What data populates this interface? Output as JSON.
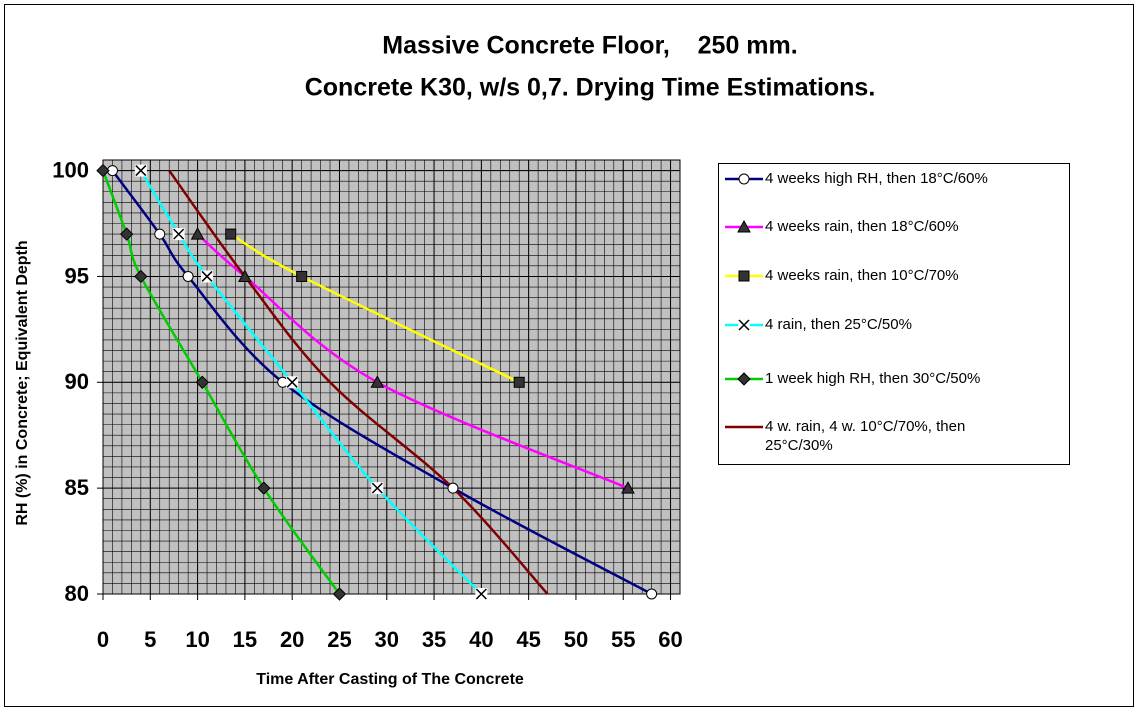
{
  "chart_data": {
    "type": "line",
    "title": [
      "Massive Concrete Floor,    250 mm.",
      "Concrete K30, w/s 0,7. Drying Time Estimations."
    ],
    "xlabel": "Time After Casting of The Concrete",
    "ylabel": "RH (%) in Concrete; Equivalent Depth",
    "xlim": [
      0,
      61
    ],
    "xticks": [
      0,
      5,
      10,
      15,
      20,
      25,
      30,
      35,
      40,
      45,
      50,
      55,
      60
    ],
    "ylim": [
      80,
      100.5
    ],
    "yticks": [
      80,
      85,
      90,
      95,
      100
    ],
    "grid": true,
    "minor_grid": {
      "x": 1,
      "y": 0.5
    },
    "plot_background": "#c0c0c0",
    "legend": "right",
    "series": [
      {
        "name": "4 weeks high RH, then 18°C/60%",
        "color": "#000080",
        "marker": "circle",
        "marker_color": "#ffffff",
        "x": [
          1,
          6,
          9,
          19,
          37,
          58
        ],
        "values": [
          100,
          97,
          95,
          90,
          85,
          80
        ]
      },
      {
        "name": "4 weeks rain, then 18°C/60%",
        "color": "#ff00ff",
        "marker": "triangle",
        "marker_color": "#333333",
        "x": [
          10,
          15,
          29,
          55.5
        ],
        "values": [
          97,
          95,
          90,
          85
        ]
      },
      {
        "name": "4 weeks rain, then 10°C/70%",
        "color": "#ffff00",
        "marker": "square",
        "marker_color": "#333333",
        "x": [
          13.5,
          21,
          44
        ],
        "values": [
          97,
          95,
          90
        ]
      },
      {
        "name": "4 rain, then 25°C/50%",
        "color": "#00ffff",
        "marker": "x",
        "marker_color": "#ffffff",
        "x": [
          4,
          8,
          11,
          20,
          29,
          40
        ],
        "values": [
          100,
          97,
          95,
          90,
          85,
          80
        ]
      },
      {
        "name": "1 week high RH, then 30°C/50%",
        "color": "#00cc00",
        "marker": "diamond",
        "marker_color": "#333333",
        "x": [
          0,
          2.5,
          4,
          10.5,
          17,
          25
        ],
        "values": [
          100,
          97,
          95,
          90,
          85,
          80
        ]
      },
      {
        "name": "4 w. rain, 4 w. 10°C/70%, then 25°C/30%",
        "color": "#800000",
        "marker": null,
        "marker_color": null,
        "x": [
          7,
          15,
          24,
          37,
          47
        ],
        "values": [
          100,
          95,
          90,
          85,
          80
        ]
      }
    ]
  }
}
